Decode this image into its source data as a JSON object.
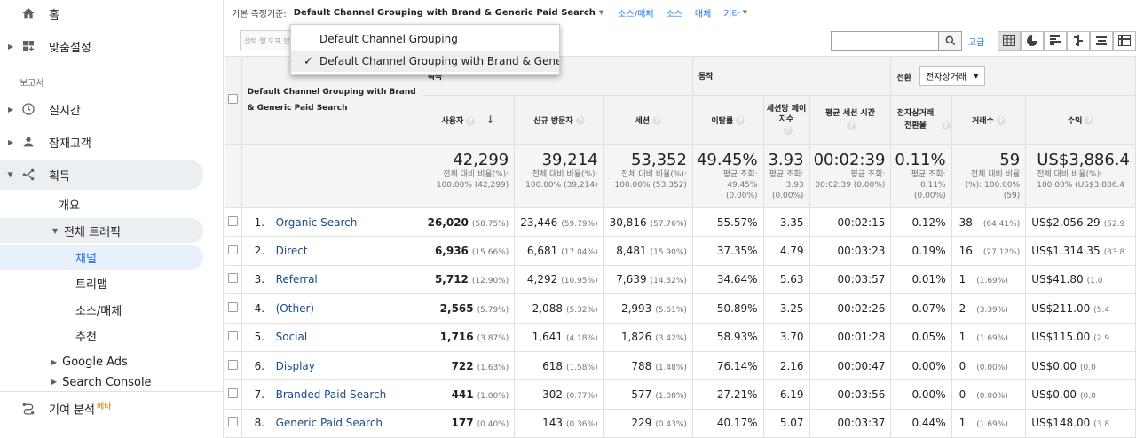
{
  "sidebar": {
    "home": "홈",
    "customization": "맞춤설정",
    "reports_section": "보고서",
    "realtime": "실시간",
    "audience": "잠재고객",
    "acquisition": "획득",
    "overview": "개요",
    "all_traffic": "전체 트래픽",
    "channels": "채널",
    "treemaps": "트리맵",
    "source_medium": "소스/매체",
    "referrals": "추천",
    "google_ads": "Google Ads",
    "search_console": "Search Console",
    "attribution": "기여 분석",
    "beta": "베타"
  },
  "dimension_bar": {
    "label": "기본 측정기준:",
    "primary": "Default Channel Grouping with Brand & Generic Paid Search",
    "source_medium": "소스/매체",
    "source": "소스",
    "medium": "매체",
    "other": "기타"
  },
  "toolbar": {
    "secondary_dimension": "선택 행 도표 만",
    "advanced": "고급"
  },
  "dropdown": {
    "items": [
      "Default Channel Grouping",
      "Default Channel Grouping with Brand & Generic P"
    ]
  },
  "table": {
    "dimension_header": "Default Channel Grouping with Brand & Generic Paid Search",
    "group_acquisition": "획득",
    "group_behavior": "동작",
    "group_conversion": "전환",
    "ecommerce_select": "전자상거래",
    "columns": {
      "users": "사용자",
      "new_users": "신규 방문자",
      "sessions": "세션",
      "bounce_rate": "이탈률",
      "pages_per_session": "세션당 페이지수",
      "avg_session_duration": "평균 세션 시간",
      "ecommerce_conversion_rate": "전자상거래 전환율",
      "transactions": "거래수",
      "revenue": "수익"
    },
    "totals": {
      "users": "42,299",
      "users_sub": "전체 대비 비율(%): 100.00% (42,299)",
      "new_users": "39,214",
      "new_users_sub": "전체 대비 비율(%): 100.00% (39,214)",
      "sessions": "53,352",
      "sessions_sub": "전체 대비 비율(%): 100.00% (53,352)",
      "bounce_rate": "49.45%",
      "bounce_rate_sub": "평균 조회: 49.45% (0.00%)",
      "pages": "3.93",
      "pages_sub": "평균 조회: 3.93 (0.00%)",
      "duration": "00:02:39",
      "duration_sub": "평균 조회: 00:02:39 (0.00%)",
      "conv": "0.11%",
      "conv_sub": "평균 조회: 0.11% (0.00%)",
      "transactions": "59",
      "transactions_sub": "전체 대비 비율(%): 100.00% (59)",
      "revenue": "US$3,886.4",
      "revenue_sub": "전체 대비 비율(%): 100.00% (US$3,886.4"
    },
    "rows": [
      {
        "num": "1.",
        "name": "Organic Search",
        "users": "26,020",
        "users_pct": "(58.75%)",
        "new_users": "23,446",
        "new_users_pct": "(59.79%)",
        "sessions": "30,816",
        "sessions_pct": "(57.76%)",
        "bounce": "55.57%",
        "pages": "3.35",
        "duration": "00:02:15",
        "conv": "0.12%",
        "trans": "38",
        "trans_pct": "(64.41%)",
        "revenue": "US$2,056.29",
        "revenue_pct": "(52.9"
      },
      {
        "num": "2.",
        "name": "Direct",
        "users": "6,936",
        "users_pct": "(15.66%)",
        "new_users": "6,681",
        "new_users_pct": "(17.04%)",
        "sessions": "8,481",
        "sessions_pct": "(15.90%)",
        "bounce": "37.35%",
        "pages": "4.79",
        "duration": "00:03:23",
        "conv": "0.19%",
        "trans": "16",
        "trans_pct": "(27.12%)",
        "revenue": "US$1,314.35",
        "revenue_pct": "(33.8"
      },
      {
        "num": "3.",
        "name": "Referral",
        "users": "5,712",
        "users_pct": "(12.90%)",
        "new_users": "4,292",
        "new_users_pct": "(10.95%)",
        "sessions": "7,639",
        "sessions_pct": "(14.32%)",
        "bounce": "34.64%",
        "pages": "5.63",
        "duration": "00:03:57",
        "conv": "0.01%",
        "trans": "1",
        "trans_pct": "(1.69%)",
        "revenue": "US$41.80",
        "revenue_pct": "(1.0"
      },
      {
        "num": "4.",
        "name": "(Other)",
        "users": "2,565",
        "users_pct": "(5.79%)",
        "new_users": "2,088",
        "new_users_pct": "(5.32%)",
        "sessions": "2,993",
        "sessions_pct": "(5.61%)",
        "bounce": "50.89%",
        "pages": "3.25",
        "duration": "00:02:26",
        "conv": "0.07%",
        "trans": "2",
        "trans_pct": "(3.39%)",
        "revenue": "US$211.00",
        "revenue_pct": "(5.4"
      },
      {
        "num": "5.",
        "name": "Social",
        "users": "1,716",
        "users_pct": "(3.87%)",
        "new_users": "1,641",
        "new_users_pct": "(4.18%)",
        "sessions": "1,826",
        "sessions_pct": "(3.42%)",
        "bounce": "58.93%",
        "pages": "3.70",
        "duration": "00:01:28",
        "conv": "0.05%",
        "trans": "1",
        "trans_pct": "(1.69%)",
        "revenue": "US$115.00",
        "revenue_pct": "(2.9"
      },
      {
        "num": "6.",
        "name": "Display",
        "users": "722",
        "users_pct": "(1.63%)",
        "new_users": "618",
        "new_users_pct": "(1.58%)",
        "sessions": "788",
        "sessions_pct": "(1.48%)",
        "bounce": "76.14%",
        "pages": "2.16",
        "duration": "00:00:47",
        "conv": "0.00%",
        "trans": "0",
        "trans_pct": "(0.00%)",
        "revenue": "US$0.00",
        "revenue_pct": "(0.0"
      },
      {
        "num": "7.",
        "name": "Branded Paid Search",
        "users": "441",
        "users_pct": "(1.00%)",
        "new_users": "302",
        "new_users_pct": "(0.77%)",
        "sessions": "577",
        "sessions_pct": "(1.08%)",
        "bounce": "27.21%",
        "pages": "6.19",
        "duration": "00:03:56",
        "conv": "0.00%",
        "trans": "0",
        "trans_pct": "(0.00%)",
        "revenue": "US$0.00",
        "revenue_pct": "(0.0"
      },
      {
        "num": "8.",
        "name": "Generic Paid Search",
        "users": "177",
        "users_pct": "(0.40%)",
        "new_users": "143",
        "new_users_pct": "(0.36%)",
        "sessions": "229",
        "sessions_pct": "(0.43%)",
        "bounce": "40.17%",
        "pages": "5.07",
        "duration": "00:03:37",
        "conv": "0.44%",
        "trans": "1",
        "trans_pct": "(1.69%)",
        "revenue": "US$148.00",
        "revenue_pct": "(3.8"
      }
    ]
  },
  "colors": {
    "link": "#1a4b8c",
    "accent": "#1a73e8",
    "header_bg": "#f1f3f4"
  }
}
